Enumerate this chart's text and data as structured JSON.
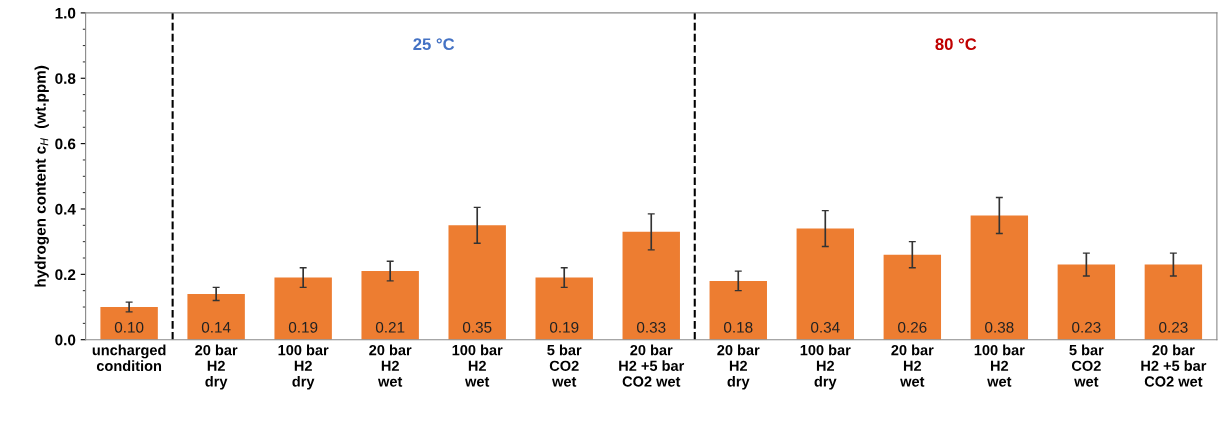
{
  "chart_data": {
    "type": "bar",
    "ylabel": "hydrogen content c$_{H}$  (wt.ppm)",
    "categories": [
      "uncharged\ncondition",
      "20 bar\nH2\ndry",
      "100 bar\nH2\ndry",
      "20 bar\nH2\nwet",
      "100 bar\nH2\nwet",
      "5 bar\nCO2\nwet",
      "20 bar\nH2 +5 bar\nCO2 wet",
      "20 bar\nH2\ndry",
      "100 bar\nH2\ndry",
      "20 bar\nH2\nwet",
      "100 bar\nH2\nwet",
      "5 bar\nCO2\nwet",
      "20 bar\nH2 +5 bar\nCO2 wet"
    ],
    "values": [
      0.1,
      0.14,
      0.19,
      0.21,
      0.35,
      0.19,
      0.33,
      0.18,
      0.34,
      0.26,
      0.38,
      0.23,
      0.23
    ],
    "errors": [
      0.015,
      0.02,
      0.03,
      0.03,
      0.055,
      0.03,
      0.055,
      0.03,
      0.055,
      0.04,
      0.055,
      0.035,
      0.035
    ],
    "color": "#ed7d31",
    "value_labels": [
      "0.10",
      "0.14",
      "0.19",
      "0.21",
      "0.35",
      "0.19",
      "0.33",
      "0.18",
      "0.34",
      "0.26",
      "0.38",
      "0.23",
      "0.23"
    ],
    "ylim": [
      0.0,
      1.0
    ],
    "yticks": [
      {
        "value": 0.0,
        "label": "0.0"
      },
      0.2,
      0.4,
      0.6,
      0.8,
      {
        "value": 1.0,
        "label": "1.0"
      }
    ],
    "grid": false,
    "annotations": [
      "25 °C",
      "80 °C"
    ]
  }
}
